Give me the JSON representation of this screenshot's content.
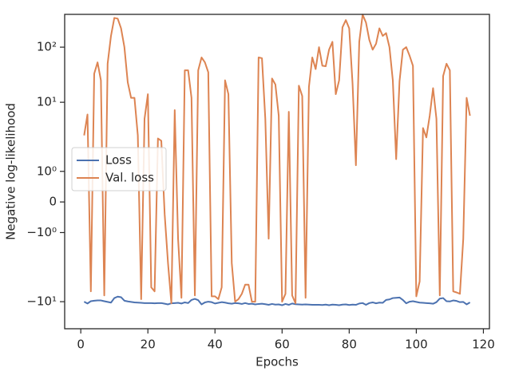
{
  "chart_data": {
    "type": "line",
    "xlabel": "Epochs",
    "ylabel": "Negative log-likelihood",
    "yscale": "symlog",
    "linthresh": 2,
    "legend": "center left",
    "xlim": [
      -4.8,
      121.8
    ],
    "xticks": [
      0,
      20,
      40,
      60,
      80,
      100,
      120
    ],
    "ylim": [
      -31,
      394
    ],
    "yticks": [
      {
        "value": -10,
        "label": "−10¹"
      },
      {
        "value": -1,
        "label": "−10⁰"
      },
      0,
      {
        "value": 1,
        "label": "10⁰"
      },
      {
        "value": 10,
        "label": "10¹"
      },
      {
        "value": 100,
        "label": "10²"
      }
    ],
    "x": [
      1,
      2,
      3,
      4,
      5,
      6,
      7,
      8,
      9,
      10,
      11,
      12,
      13,
      14,
      15,
      16,
      17,
      18,
      19,
      20,
      21,
      22,
      23,
      24,
      25,
      26,
      27,
      28,
      29,
      30,
      31,
      32,
      33,
      34,
      35,
      36,
      37,
      38,
      39,
      40,
      41,
      42,
      43,
      44,
      45,
      46,
      47,
      48,
      49,
      50,
      51,
      52,
      53,
      54,
      55,
      56,
      57,
      58,
      59,
      60,
      61,
      62,
      63,
      64,
      65,
      66,
      67,
      68,
      69,
      70,
      71,
      72,
      73,
      74,
      75,
      76,
      77,
      78,
      79,
      80,
      81,
      82,
      83,
      84,
      85,
      86,
      87,
      88,
      89,
      90,
      91,
      92,
      93,
      94,
      95,
      96,
      97,
      98,
      99,
      100,
      101,
      102,
      103,
      104,
      105,
      106,
      107,
      108,
      109,
      110,
      111,
      112,
      113,
      114,
      115,
      116
    ],
    "series": [
      {
        "name": "Loss",
        "color": "#4c72b0",
        "values": [
          -10,
          -10.8,
          -9.8,
          -9.6,
          -9.5,
          -9.5,
          -9.8,
          -10.1,
          -10.4,
          -8.6,
          -8.1,
          -8.3,
          -9.6,
          -9.9,
          -10.1,
          -10.3,
          -10.4,
          -10.5,
          -10.6,
          -10.6,
          -10.6,
          -10.7,
          -10.6,
          -10.6,
          -10.9,
          -11.2,
          -10.7,
          -10.6,
          -10.5,
          -10.8,
          -10.3,
          -10.6,
          -9.3,
          -8.9,
          -9.4,
          -11.2,
          -10.3,
          -10,
          -10.2,
          -10.8,
          -10.5,
          -10.2,
          -10.4,
          -10.7,
          -10.9,
          -10.6,
          -10.7,
          -11,
          -10.6,
          -11,
          -10.9,
          -11.2,
          -11,
          -10.9,
          -11.1,
          -11.4,
          -11,
          -11.3,
          -11.2,
          -11.6,
          -11,
          -11.4,
          -10.8,
          -11.1,
          -11.2,
          -11.3,
          -11.2,
          -11.3,
          -11.4,
          -11.4,
          -11.4,
          -11.5,
          -11.3,
          -11.6,
          -11.3,
          -11.4,
          -11.6,
          -11.3,
          -11.2,
          -11.5,
          -11.3,
          -11.4,
          -10.8,
          -10.6,
          -11.4,
          -10.6,
          -10.3,
          -10.7,
          -10.4,
          -10.5,
          -9.3,
          -9.1,
          -8.6,
          -8.5,
          -8.4,
          -9.3,
          -10.7,
          -10,
          -9.8,
          -10.1,
          -10.4,
          -10.5,
          -10.6,
          -10.7,
          -10.9,
          -10.2,
          -8.8,
          -8.6,
          -9.8,
          -9.9,
          -9.5,
          -9.7,
          -10.2,
          -10.1,
          -11.2,
          -10.3
        ]
      },
      {
        "name": "Val. loss",
        "color": "#dd8452",
        "values": [
          2.5,
          6,
          -6.5,
          33,
          53,
          25,
          -7.7,
          50,
          160,
          340,
          330,
          220,
          100,
          23,
          12,
          12,
          2.5,
          -9,
          5,
          14,
          -5.5,
          -6.5,
          2.2,
          2,
          -0.4,
          -2,
          -10.7,
          7.2,
          -1.2,
          -8.5,
          38,
          38,
          12,
          -7.7,
          38,
          65,
          53,
          35,
          -8,
          -8,
          -9,
          -5.5,
          25,
          14,
          -2,
          -10,
          -9,
          -7.2,
          -4.9,
          -4.9,
          -10,
          -10,
          65,
          63,
          5,
          -1.2,
          27,
          21,
          5.7,
          -10,
          -7.2,
          6.7,
          -7.7,
          -10.7,
          20,
          13,
          -8.5,
          19,
          65,
          40,
          100,
          46,
          45,
          90,
          125,
          14,
          25,
          230,
          310,
          220,
          22,
          1.2,
          125,
          390,
          280,
          135,
          90,
          115,
          220,
          160,
          180,
          100,
          25,
          1.4,
          24,
          90,
          100,
          70,
          46,
          -8,
          -4.3,
          3.4,
          2.3,
          5.7,
          18,
          5,
          -7.7,
          30,
          50,
          38,
          -6.5,
          -6.8,
          -7.2,
          -1.2,
          12,
          5.7
        ]
      }
    ]
  }
}
